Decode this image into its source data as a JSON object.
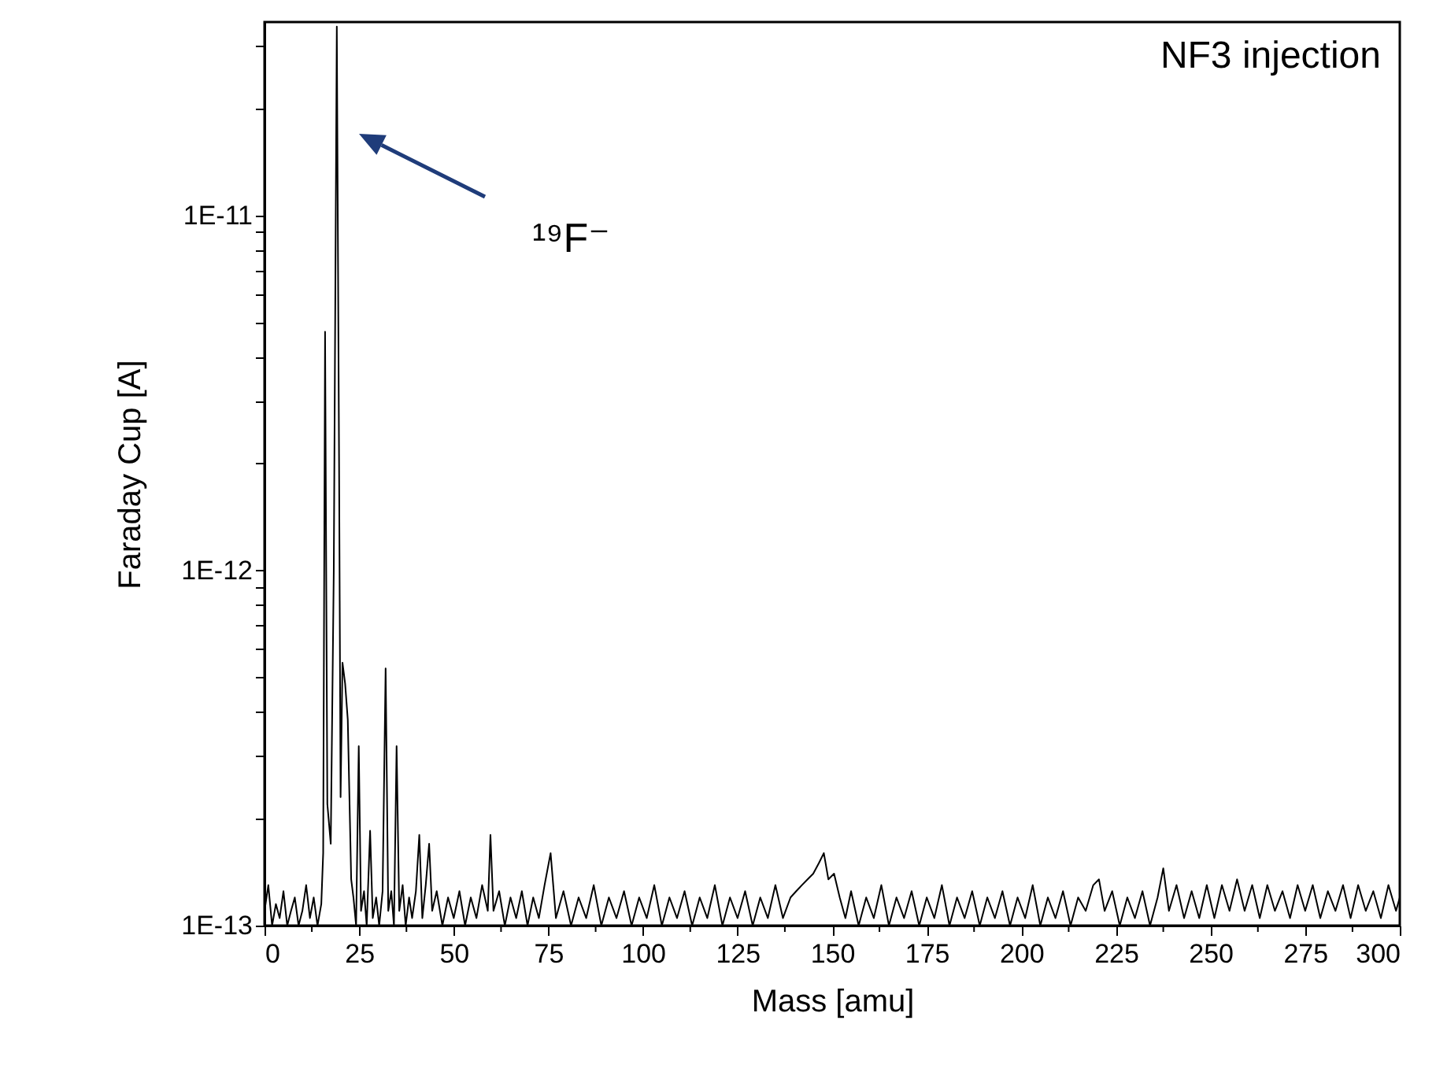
{
  "chart_data": {
    "type": "line",
    "xlabel": "Mass [amu]",
    "ylabel": "Faraday Cup [A]",
    "annotations": [
      "NF3 injection",
      "¹⁹F⁻"
    ],
    "log": "y",
    "grid": false,
    "marker": "none",
    "line_style": "solid",
    "xlim": [
      0,
      300
    ],
    "ylim": [
      1e-13,
      3.5e-11
    ],
    "xticks": [
      0,
      {
        "value": 12.5,
        "label": null
      },
      25,
      {
        "value": 37.5,
        "label": null
      },
      50,
      {
        "value": 62.5,
        "label": null
      },
      75,
      {
        "value": 87.5,
        "label": null
      },
      100,
      {
        "value": 112.5,
        "label": null
      },
      125,
      {
        "value": 137.5,
        "label": null
      },
      150,
      {
        "value": 162.5,
        "label": null
      },
      175,
      {
        "value": 187.5,
        "label": null
      },
      200,
      {
        "value": 212.5,
        "label": null
      },
      225,
      {
        "value": 237.5,
        "label": null
      },
      250,
      {
        "value": 262.5,
        "label": null
      },
      275,
      {
        "value": 287.5,
        "label": null
      },
      300
    ],
    "yticks": [
      {
        "value": 1e-13,
        "label": "1E-13"
      },
      {
        "value": 2e-13,
        "label": null
      },
      {
        "value": 3e-13,
        "label": null
      },
      {
        "value": 4e-13,
        "label": null
      },
      {
        "value": 5e-13,
        "label": null
      },
      {
        "value": 6e-13,
        "label": null
      },
      {
        "value": 7e-13,
        "label": null
      },
      {
        "value": 8e-13,
        "label": null
      },
      {
        "value": 9e-13,
        "label": null
      },
      {
        "value": 1e-12,
        "label": "1E-12"
      },
      {
        "value": 2e-12,
        "label": null
      },
      {
        "value": 3e-12,
        "label": null
      },
      {
        "value": 4e-12,
        "label": null
      },
      {
        "value": 5e-12,
        "label": null
      },
      {
        "value": 6e-12,
        "label": null
      },
      {
        "value": 7e-12,
        "label": null
      },
      {
        "value": 8e-12,
        "label": null
      },
      {
        "value": 9e-12,
        "label": null
      },
      {
        "value": 1e-11,
        "label": "1E-11"
      },
      {
        "value": 2e-11,
        "label": null
      },
      {
        "value": 3e-11,
        "label": null
      }
    ],
    "series": [
      {
        "color": "#000000",
        "x": [
          0,
          1,
          2,
          3,
          4,
          5,
          6,
          7,
          8,
          9,
          10,
          11,
          12,
          13,
          14,
          15,
          15.5,
          16,
          16.6,
          17.5,
          18.3,
          19.1,
          19.7,
          20.1,
          20.6,
          21.3,
          22,
          22.9,
          23.5,
          24.2,
          24.9,
          25.5,
          26.3,
          27,
          27.9,
          28.6,
          29.5,
          30.3,
          31.2,
          32,
          32.7,
          33.5,
          34.2,
          34.9,
          35.6,
          36.5,
          37.3,
          38.2,
          39,
          40,
          40.9,
          41.7,
          42.6,
          43.5,
          44.3,
          45.5,
          47,
          48.5,
          50,
          51.5,
          53,
          54.5,
          56,
          57.5,
          59,
          59.7,
          60.5,
          62,
          63.5,
          65,
          66.5,
          68,
          69.5,
          71,
          72.5,
          74,
          75.6,
          77,
          79,
          81,
          83,
          85,
          87,
          89,
          91,
          93,
          95,
          97,
          99,
          101,
          103,
          105,
          107,
          109,
          111,
          113,
          115,
          117,
          119,
          121,
          123,
          125,
          127,
          129,
          131,
          133,
          135,
          137,
          139,
          140.5,
          142,
          143.5,
          145,
          146.5,
          147.8,
          149,
          150.5,
          152,
          153.5,
          155,
          157,
          159,
          161,
          163,
          165,
          167,
          169,
          171,
          173,
          175,
          177,
          179,
          181,
          183,
          185,
          187,
          189,
          191,
          193,
          195,
          197,
          199,
          201,
          203,
          205,
          207,
          209,
          211,
          213,
          215,
          217,
          219,
          220.5,
          222,
          224,
          226,
          228,
          230,
          232,
          234,
          236,
          237.5,
          239,
          241,
          243,
          245,
          247,
          249,
          251,
          253,
          255,
          257,
          259,
          261,
          263,
          265,
          267,
          269,
          271,
          273,
          275,
          277,
          279,
          281,
          283,
          285,
          287,
          289,
          291,
          293,
          295,
          297,
          299,
          300
        ],
        "values": [
          1.1e-13,
          1.3e-13,
          1e-13,
          1.15e-13,
          1.05e-13,
          1.25e-13,
          1e-13,
          1.1e-13,
          1.2e-13,
          1e-13,
          1.1e-13,
          1.3e-13,
          1.05e-13,
          1.2e-13,
          1e-13,
          1.15e-13,
          1.6e-13,
          4.7e-12,
          2.2e-13,
          1.7e-13,
          1e-12,
          3.4e-11,
          2e-12,
          2.3e-13,
          5.5e-13,
          4.8e-13,
          3.8e-13,
          1.35e-13,
          1.2e-13,
          1e-13,
          3.2e-13,
          1.1e-13,
          1.25e-13,
          1e-13,
          1.85e-13,
          1.05e-13,
          1.2e-13,
          1e-13,
          1.25e-13,
          5.3e-13,
          1.1e-13,
          1.25e-13,
          1e-13,
          3.2e-13,
          1.1e-13,
          1.3e-13,
          1e-13,
          1.2e-13,
          1.05e-13,
          1.25e-13,
          1.8e-13,
          1.05e-13,
          1.3e-13,
          1.7e-13,
          1.1e-13,
          1.25e-13,
          1e-13,
          1.2e-13,
          1.05e-13,
          1.25e-13,
          1e-13,
          1.2e-13,
          1.05e-13,
          1.3e-13,
          1.1e-13,
          1.8e-13,
          1.1e-13,
          1.25e-13,
          1e-13,
          1.2e-13,
          1.05e-13,
          1.25e-13,
          1e-13,
          1.2e-13,
          1.05e-13,
          1.3e-13,
          1.6e-13,
          1.05e-13,
          1.25e-13,
          1e-13,
          1.2e-13,
          1.05e-13,
          1.3e-13,
          1e-13,
          1.2e-13,
          1.05e-13,
          1.25e-13,
          1e-13,
          1.2e-13,
          1.05e-13,
          1.3e-13,
          1e-13,
          1.2e-13,
          1.05e-13,
          1.25e-13,
          1e-13,
          1.2e-13,
          1.05e-13,
          1.3e-13,
          1e-13,
          1.2e-13,
          1.05e-13,
          1.25e-13,
          1e-13,
          1.2e-13,
          1.05e-13,
          1.3e-13,
          1.05e-13,
          1.2e-13,
          1.25e-13,
          1.3e-13,
          1.35e-13,
          1.4e-13,
          1.5e-13,
          1.6e-13,
          1.35e-13,
          1.4e-13,
          1.2e-13,
          1.05e-13,
          1.25e-13,
          1e-13,
          1.2e-13,
          1.05e-13,
          1.3e-13,
          1e-13,
          1.2e-13,
          1.05e-13,
          1.25e-13,
          1e-13,
          1.2e-13,
          1.05e-13,
          1.3e-13,
          1e-13,
          1.2e-13,
          1.05e-13,
          1.25e-13,
          1e-13,
          1.2e-13,
          1.05e-13,
          1.25e-13,
          1e-13,
          1.2e-13,
          1.05e-13,
          1.3e-13,
          1e-13,
          1.2e-13,
          1.05e-13,
          1.25e-13,
          1e-13,
          1.2e-13,
          1.1e-13,
          1.3e-13,
          1.35e-13,
          1.1e-13,
          1.25e-13,
          1e-13,
          1.2e-13,
          1.05e-13,
          1.25e-13,
          1e-13,
          1.2e-13,
          1.45e-13,
          1.1e-13,
          1.3e-13,
          1.05e-13,
          1.25e-13,
          1.05e-13,
          1.3e-13,
          1.05e-13,
          1.3e-13,
          1.1e-13,
          1.35e-13,
          1.1e-13,
          1.3e-13,
          1.05e-13,
          1.3e-13,
          1.1e-13,
          1.25e-13,
          1.05e-13,
          1.3e-13,
          1.1e-13,
          1.3e-13,
          1.05e-13,
          1.25e-13,
          1.1e-13,
          1.3e-13,
          1.05e-13,
          1.3e-13,
          1.1e-13,
          1.25e-13,
          1.05e-13,
          1.3e-13,
          1.1e-13,
          1.2e-13
        ]
      }
    ]
  }
}
